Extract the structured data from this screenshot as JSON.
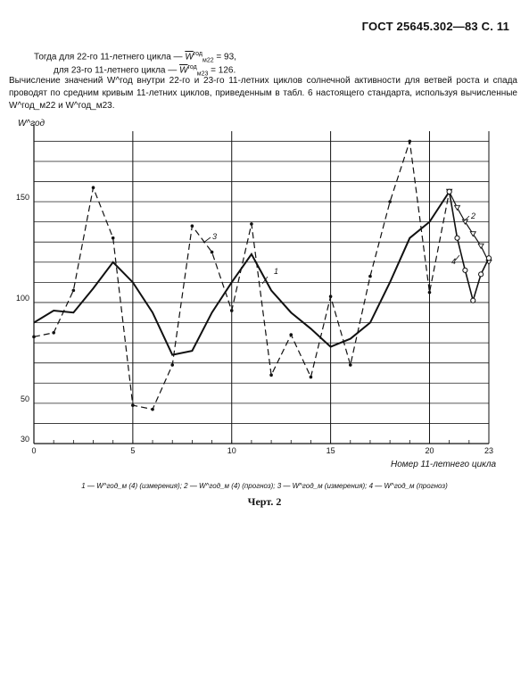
{
  "header": "ГОСТ 25645.302—83 С. 11",
  "text": {
    "line1_prefix": "Тогда для 22-го 11-летнего цикла —",
    "line1_sym": "W",
    "line1_sup": "год",
    "line1_sub": "м22",
    "line1_value": "= 93,",
    "line2_prefix": "для 23-го 11-летнего цикла —",
    "line2_sym": "W",
    "line2_sup": "год",
    "line2_sub": "м23",
    "line2_value": "= 126.",
    "paragraph": "Вычисление значений W^год внутри 22-го и 23-го 11-летних циклов солнечной активности для ветвей роста и спада проводят по средним кривым 11-летних циклов, приведенным в табл. 6 настоящего стандарта, используя вычисленные W^год_м22 и W^год_м23."
  },
  "legend_text": "1 — W^год_м (4) (измерения); 2 — W^год_м (4) (прогноз); 3 — W^год_м (измерения); 4 — W^год_м (прогноз)",
  "caption": "Черт. 2",
  "chart_data": {
    "type": "line",
    "title": "",
    "ylabel": "W^год",
    "xlabel": "Номер 11-летнего цикла",
    "xlim": [
      0,
      23
    ],
    "ylim": [
      30,
      185
    ],
    "x_ticks": [
      "0",
      "5",
      "10",
      "15",
      "20",
      "23"
    ],
    "y_ticks": [
      "30",
      "50",
      "100",
      "150"
    ],
    "grid": true,
    "series": [
      {
        "name": "1",
        "style": "solid-thick",
        "x": [
          0,
          1,
          2,
          3,
          4,
          5,
          6,
          7,
          8,
          9,
          10,
          11,
          12,
          13,
          14,
          15,
          16,
          17,
          18,
          19,
          20,
          21
        ],
        "values": [
          90,
          96,
          95,
          107,
          120,
          110,
          95,
          74,
          76,
          95,
          110,
          124,
          106,
          95,
          87,
          78,
          82,
          90,
          110,
          132,
          140,
          155
        ]
      },
      {
        "name": "3",
        "style": "dashed-dots",
        "x": [
          0,
          1,
          2,
          3,
          4,
          5,
          6,
          7,
          8,
          9,
          10,
          11,
          12,
          13,
          14,
          15,
          16,
          17,
          18,
          19,
          20,
          21
        ],
        "values": [
          83,
          85,
          106,
          157,
          132,
          49,
          47,
          69,
          138,
          125,
          96,
          139,
          64,
          84,
          63,
          103,
          69,
          113,
          150,
          180,
          105,
          155
        ]
      },
      {
        "name": "2",
        "style": "solid-triangles",
        "x": [
          21,
          21.4,
          21.8,
          22.2,
          22.6,
          23
        ],
        "values": [
          155,
          147,
          140,
          134,
          128,
          120
        ]
      },
      {
        "name": "4",
        "style": "solid-circles",
        "x": [
          21,
          21.4,
          21.8,
          22.2,
          22.6,
          23
        ],
        "values": [
          155,
          132,
          116,
          101,
          114,
          122
        ]
      }
    ],
    "annotations": [
      "1",
      "2",
      "3",
      "4"
    ]
  }
}
